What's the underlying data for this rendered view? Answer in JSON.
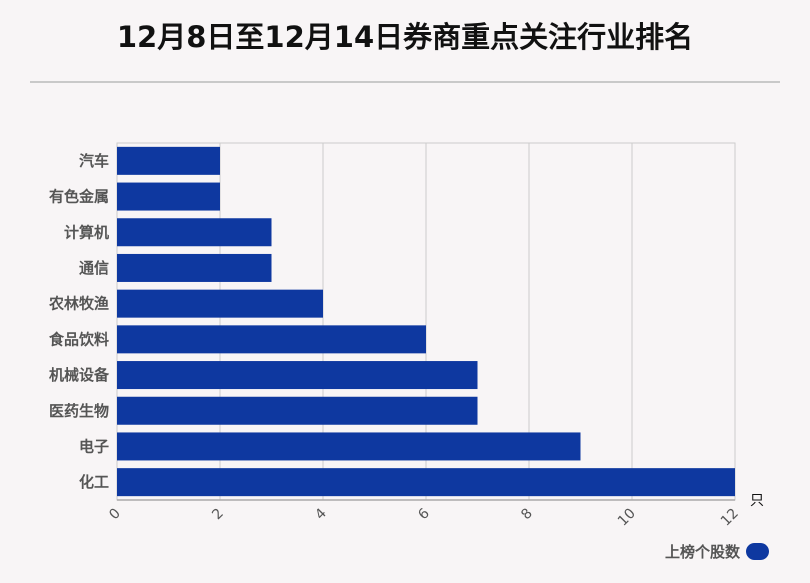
{
  "title": "12月8日至12月14日券商重点关注行业排名",
  "chart_data": {
    "type": "bar",
    "orientation": "horizontal",
    "categories": [
      "汽车",
      "有色金属",
      "计算机",
      "通信",
      "农林牧渔",
      "食品饮料",
      "机械设备",
      "医药生物",
      "电子",
      "化工"
    ],
    "series": [
      {
        "name": "上榜个股数",
        "values": [
          2,
          2,
          3,
          3,
          4,
          6,
          7,
          7,
          9,
          12
        ]
      }
    ],
    "x_ticks": [
      "0",
      "2",
      "4",
      "6",
      "8",
      "10",
      "12"
    ],
    "xlim": [
      0,
      12
    ],
    "x_unit": "只",
    "grid": true,
    "legend_position": "bottom-right"
  },
  "colors": {
    "bar": "#0e38a0",
    "grid": "#cccccc",
    "background": "#f8f5f6"
  }
}
